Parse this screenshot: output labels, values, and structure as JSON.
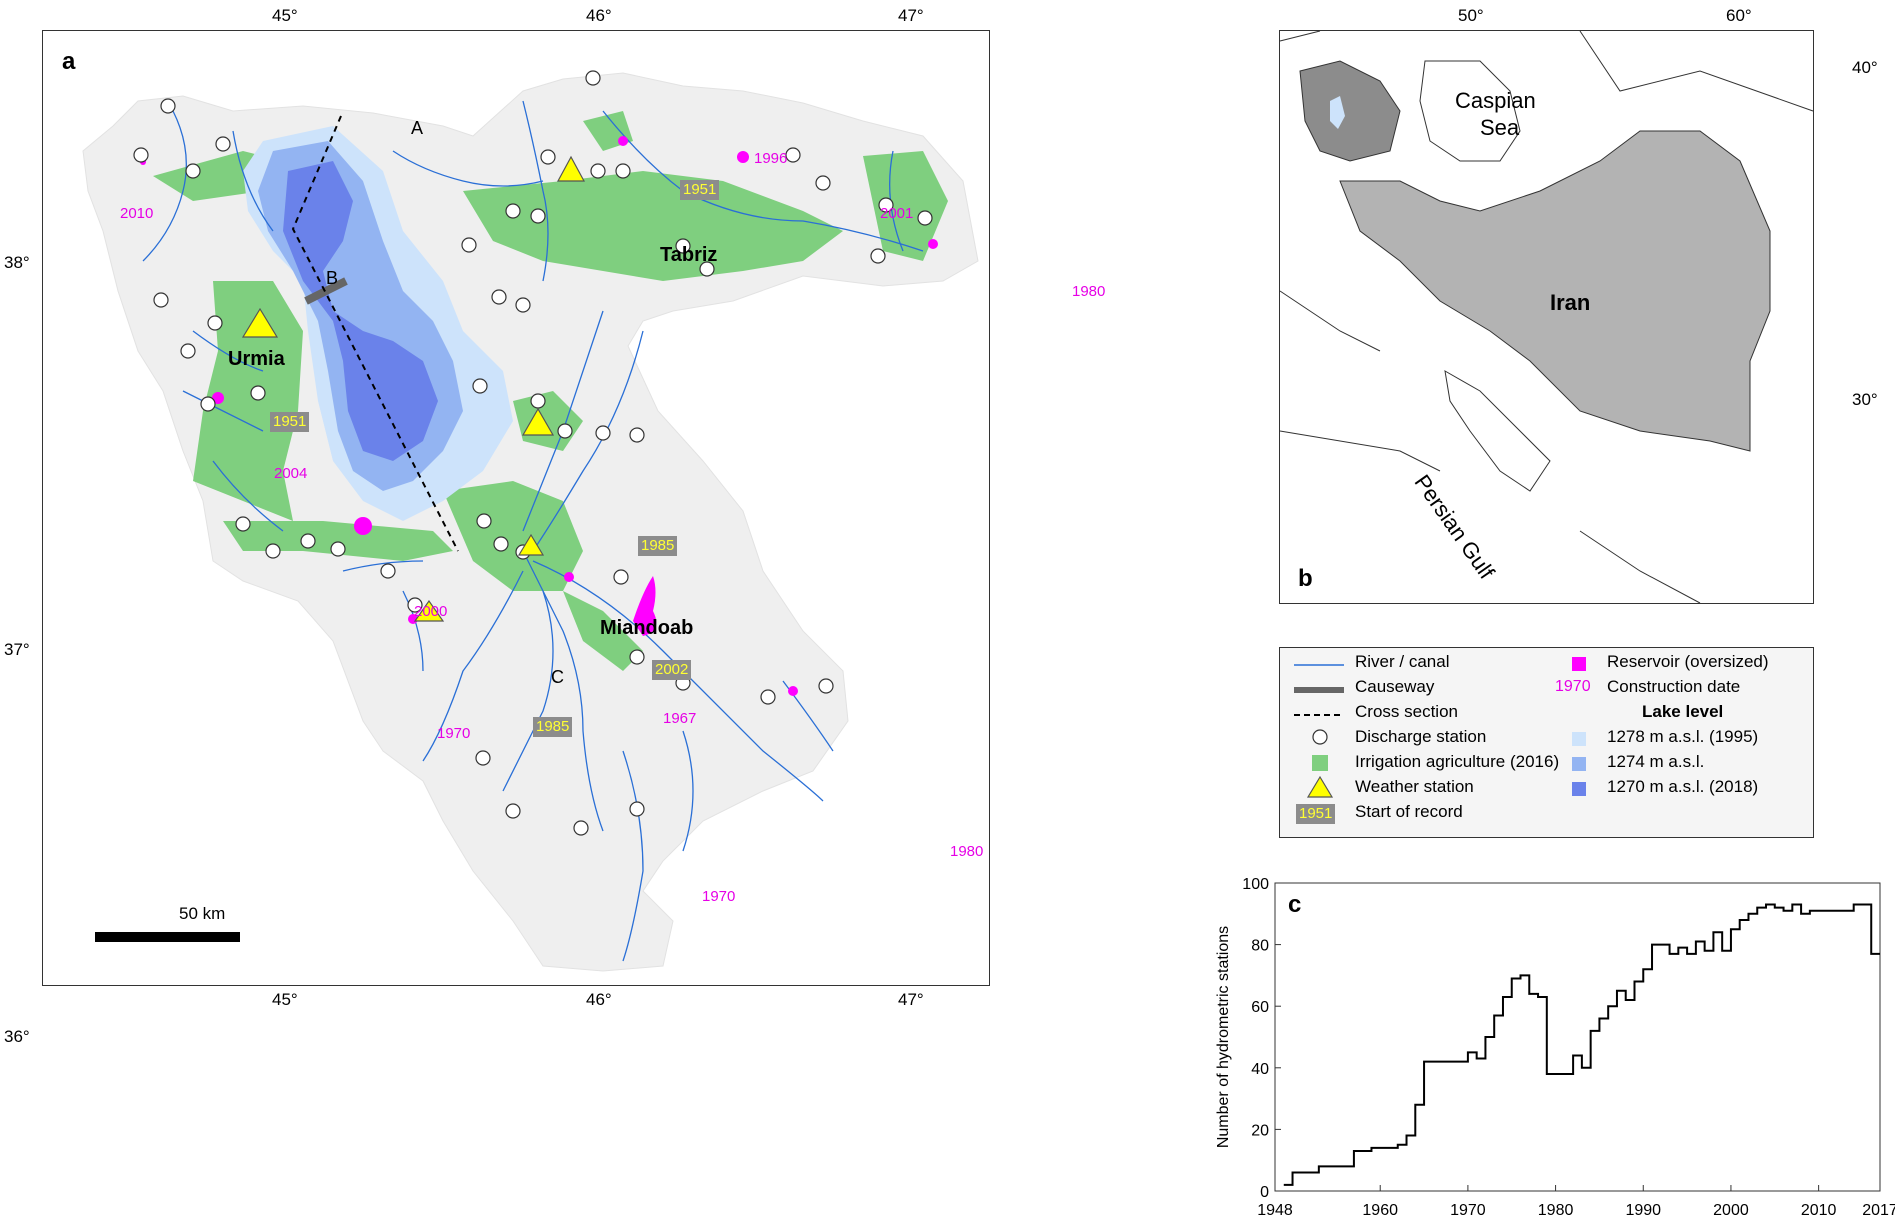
{
  "panel_a": {
    "letter": "a",
    "lon_ticks": [
      "45°",
      "46°",
      "47°"
    ],
    "lat_ticks": [
      "38°",
      "37°",
      "36°"
    ],
    "cities": [
      {
        "name": "Tabriz"
      },
      {
        "name": "Urmia"
      },
      {
        "name": "Miandoab"
      }
    ],
    "cross_section_points": [
      "A",
      "B",
      "C"
    ],
    "reservoir_dates": [
      "1996",
      "2010",
      "2001",
      "1980",
      "2004",
      "2000",
      "1970",
      "1967",
      "1970",
      "1980"
    ],
    "record_starts": [
      "1951",
      "1951",
      "1985",
      "2002",
      "1985"
    ],
    "scale_bar_label": "50 km"
  },
  "panel_b": {
    "letter": "b",
    "lon_ticks": [
      "50°",
      "60°"
    ],
    "lat_ticks": [
      "40°",
      "30°"
    ],
    "labels": {
      "sea": "Caspian Sea",
      "sea_line1": "Caspian",
      "sea_line2": "Sea",
      "country": "Iran",
      "gulf": "Persian Gulf"
    }
  },
  "legend": {
    "items": [
      {
        "label": "River / canal",
        "symbol": "river-line"
      },
      {
        "label": "Causeway",
        "symbol": "causeway-line"
      },
      {
        "label": "Cross section",
        "symbol": "dashed-line"
      },
      {
        "label": "Discharge station",
        "symbol": "open-circle"
      },
      {
        "label": "Irrigation agriculture (2016)",
        "symbol": "green-square"
      },
      {
        "label": "Weather station",
        "symbol": "yellow-triangle"
      },
      {
        "label": "Start of record",
        "symbol": "grey-box",
        "sample": "1951"
      },
      {
        "label": "Reservoir (oversized)",
        "symbol": "magenta-square"
      },
      {
        "label": "Construction date",
        "symbol": "magenta-text",
        "sample": "1970"
      },
      {
        "label": "1278 m a.s.l. (1995)",
        "symbol": "light-blue-square"
      },
      {
        "label": "1274 m a.s.l.",
        "symbol": "mid-blue-square"
      },
      {
        "label": "1270 m a.s.l. (2018)",
        "symbol": "dark-blue-square"
      }
    ],
    "lake_level_heading": "Lake level",
    "colors": {
      "river": "#2a6fd6",
      "causeway": "#666666",
      "irrigation": "#7fcf7f",
      "weather": "#ffff00",
      "start_box": "#8c8c8c",
      "start_text": "#ffff33",
      "reservoir": "#ff00ff",
      "lake_1278": "#cde3fb",
      "lake_1274": "#93b4f2",
      "lake_1270": "#6a82ea",
      "basin": "#efefef"
    }
  },
  "panel_c": {
    "letter": "c",
    "chart_data": {
      "type": "line",
      "step": true,
      "title": "",
      "xlabel": "",
      "ylabel": "Number of hydrometric stations",
      "xlim": [
        1948,
        2017
      ],
      "ylim": [
        0,
        100
      ],
      "x_ticks": [
        "1948",
        "1960",
        "1970",
        "1980",
        "1990",
        "2000",
        "2010",
        "2017"
      ],
      "y_ticks": [
        "0",
        "20",
        "40",
        "60",
        "80",
        "100"
      ],
      "x": [
        1949,
        1950,
        1953,
        1956,
        1957,
        1958,
        1959,
        1960,
        1962,
        1963,
        1964,
        1965,
        1967,
        1969,
        1970,
        1971,
        1972,
        1973,
        1974,
        1975,
        1976,
        1977,
        1978,
        1979,
        1981,
        1982,
        1983,
        1984,
        1985,
        1986,
        1987,
        1988,
        1989,
        1990,
        1991,
        1993,
        1994,
        1995,
        1996,
        1997,
        1998,
        1999,
        2000,
        2001,
        2002,
        2003,
        2004,
        2005,
        2006,
        2007,
        2008,
        2009,
        2010,
        2011,
        2012,
        2013,
        2014,
        2015,
        2016,
        2017
      ],
      "y": [
        2,
        6,
        8,
        8,
        13,
        13,
        14,
        14,
        15,
        18,
        28,
        42,
        42,
        42,
        45,
        43,
        50,
        57,
        63,
        69,
        70,
        64,
        63,
        38,
        38,
        44,
        40,
        52,
        56,
        60,
        65,
        62,
        68,
        72,
        80,
        77,
        79,
        77,
        81,
        78,
        84,
        78,
        85,
        88,
        90,
        92,
        93,
        92,
        91,
        93,
        90,
        91,
        91,
        91,
        91,
        91,
        93,
        93,
        77,
        77
      ]
    }
  }
}
